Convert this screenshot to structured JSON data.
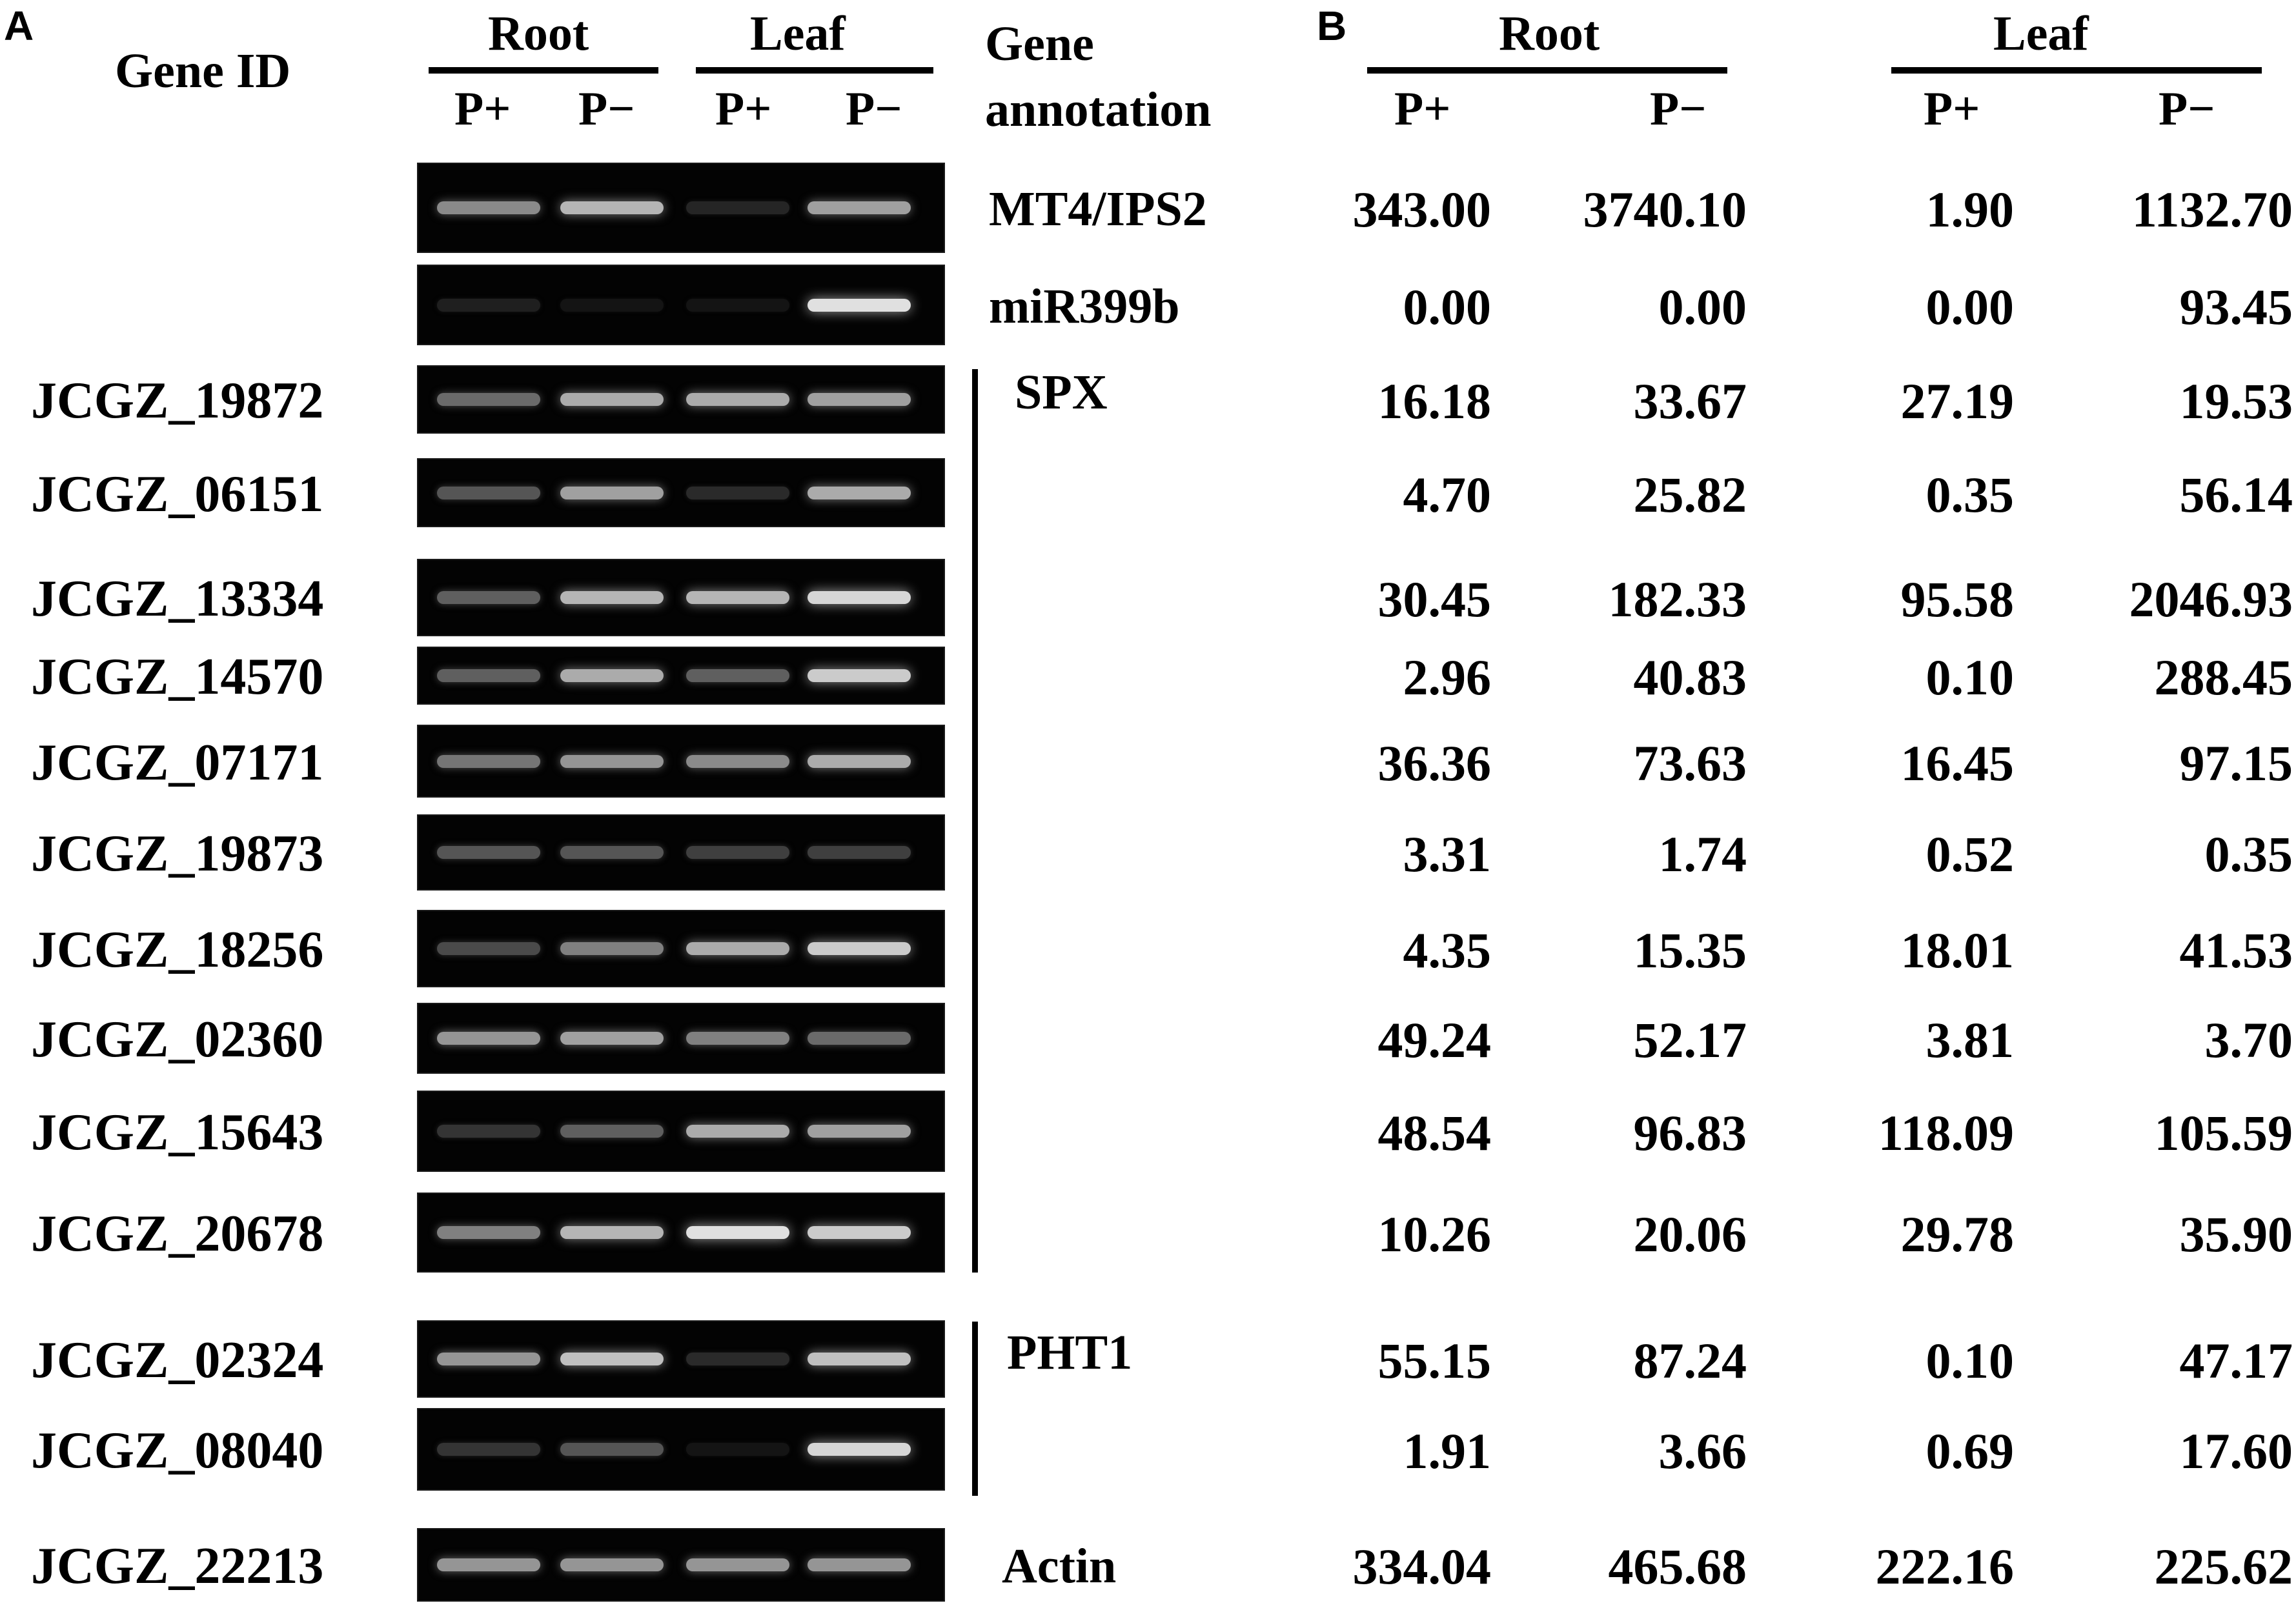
{
  "panel_a": {
    "letter": "A",
    "gene_id_header": "Gene ID",
    "tissue_headers": [
      "Root",
      "Leaf"
    ],
    "condition_headers": [
      "P+",
      "P−",
      "P+",
      "P−"
    ],
    "annotation_header": [
      "Gene",
      "annotation"
    ]
  },
  "panel_b": {
    "letter": "B",
    "tissue_headers": [
      "Root",
      "Leaf"
    ],
    "condition_headers": [
      "P+",
      "P−",
      "P+",
      "P−"
    ]
  },
  "groups": {
    "spx": "SPX",
    "pht1": "PHT1"
  },
  "rows": [
    {
      "gene_id": "",
      "annotation": "MT4/IPS2",
      "values": [
        "343.00",
        "3740.10",
        "1.90",
        "1132.70"
      ],
      "band_levels": [
        0.55,
        0.75,
        0.08,
        0.65
      ]
    },
    {
      "gene_id": "",
      "annotation": "miR399b",
      "values": [
        "0.00",
        "0.00",
        "0.00",
        "93.45"
      ],
      "band_levels": [
        0.05,
        0.0,
        0.0,
        0.95
      ]
    },
    {
      "gene_id": "JCGZ_19872",
      "annotation": "",
      "values": [
        "16.18",
        "33.67",
        "27.19",
        "19.53"
      ],
      "band_levels": [
        0.4,
        0.7,
        0.7,
        0.65
      ]
    },
    {
      "gene_id": "JCGZ_06151",
      "annotation": "",
      "values": [
        "4.70",
        "25.82",
        "0.35",
        "56.14"
      ],
      "band_levels": [
        0.3,
        0.65,
        0.1,
        0.7
      ]
    },
    {
      "gene_id": "JCGZ_13334",
      "annotation": "",
      "values": [
        "30.45",
        "182.33",
        "95.58",
        "2046.93"
      ],
      "band_levels": [
        0.35,
        0.75,
        0.75,
        0.9
      ]
    },
    {
      "gene_id": "JCGZ_14570",
      "annotation": "",
      "values": [
        "2.96",
        "40.83",
        "0.10",
        "288.45"
      ],
      "band_levels": [
        0.35,
        0.7,
        0.35,
        0.85
      ]
    },
    {
      "gene_id": "JCGZ_07171",
      "annotation": "",
      "values": [
        "36.36",
        "73.63",
        "16.45",
        "97.15"
      ],
      "band_levels": [
        0.45,
        0.6,
        0.55,
        0.7
      ]
    },
    {
      "gene_id": "JCGZ_19873",
      "annotation": "",
      "values": [
        "3.31",
        "1.74",
        "0.52",
        "0.35"
      ],
      "band_levels": [
        0.3,
        0.3,
        0.2,
        0.2
      ]
    },
    {
      "gene_id": "JCGZ_18256",
      "annotation": "",
      "values": [
        "4.35",
        "15.35",
        "18.01",
        "41.53"
      ],
      "band_levels": [
        0.25,
        0.5,
        0.7,
        0.85
      ]
    },
    {
      "gene_id": "JCGZ_02360",
      "annotation": "",
      "values": [
        "49.24",
        "52.17",
        "3.81",
        "3.70"
      ],
      "band_levels": [
        0.6,
        0.65,
        0.5,
        0.4
      ]
    },
    {
      "gene_id": "JCGZ_15643",
      "annotation": "",
      "values": [
        "48.54",
        "96.83",
        "118.09",
        "105.59"
      ],
      "band_levels": [
        0.15,
        0.35,
        0.7,
        0.65
      ]
    },
    {
      "gene_id": "JCGZ_20678",
      "annotation": "",
      "values": [
        "10.26",
        "20.06",
        "29.78",
        "35.90"
      ],
      "band_levels": [
        0.5,
        0.75,
        0.95,
        0.85
      ]
    },
    {
      "gene_id": "JCGZ_02324",
      "annotation": "",
      "values": [
        "55.15",
        "87.24",
        "0.10",
        "47.17"
      ],
      "band_levels": [
        0.6,
        0.8,
        0.1,
        0.8
      ]
    },
    {
      "gene_id": "JCGZ_08040",
      "annotation": "",
      "values": [
        "1.91",
        "3.66",
        "0.69",
        "17.60"
      ],
      "band_levels": [
        0.15,
        0.3,
        0.0,
        0.9
      ]
    },
    {
      "gene_id": "JCGZ_22213",
      "annotation": "Actin",
      "values": [
        "334.04",
        "465.68",
        "222.16",
        "225.62"
      ],
      "band_levels": [
        0.6,
        0.6,
        0.6,
        0.6
      ]
    }
  ]
}
